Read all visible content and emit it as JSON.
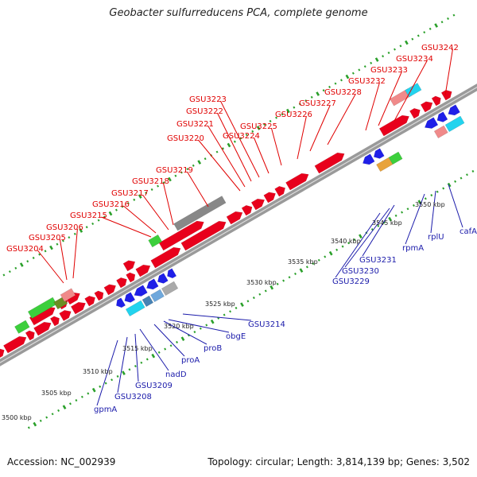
{
  "title": "Geobacter sulfurreducens PCA, complete genome",
  "footer": {
    "accession": "Accession: NC_002939",
    "stats": "Topology: circular; Length: 3,814,139 bp; Genes: 3,502"
  },
  "colors": {
    "forward_gene": "#e8001c",
    "reverse_gene": "#1f1fe8",
    "forward_label": "#e00000",
    "reverse_label": "#1a1aaa",
    "backbone": "#9a9a9a",
    "tick": "#2aa02a",
    "scale_text": "#222222"
  },
  "scale_labels": [
    "3500 kbp",
    "3505 kbp",
    "3510 kbp",
    "3515 kbp",
    "3520 kbp",
    "3525 kbp",
    "3530 kbp",
    "3535 kbp",
    "3540 kbp",
    "3545 kbp",
    "3550 kbp"
  ],
  "forward_labels": [
    "GSU3204",
    "GSU3205",
    "GSU3206",
    "GSU3215",
    "GSU3216",
    "GSU3217",
    "GSU3218",
    "GSU3219",
    "GSU3220",
    "GSU3221",
    "GSU3222",
    "GSU3223",
    "GSU3224",
    "GSU3225",
    "GSU3226",
    "GSU3227",
    "GSU3228",
    "GSU3232",
    "GSU3233",
    "GSU3234",
    "GSU3242"
  ],
  "reverse_labels": [
    "gpmA",
    "GSU3208",
    "GSU3209",
    "nadD",
    "proA",
    "proB",
    "obgE",
    "GSU3214",
    "GSU3229",
    "GSU3230",
    "GSU3231",
    "rpmA",
    "rplU",
    "cafA"
  ]
}
